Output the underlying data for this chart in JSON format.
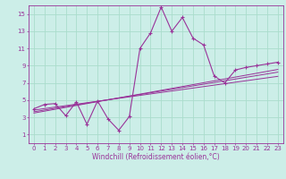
{
  "xlabel": "Windchill (Refroidissement éolien,°C)",
  "bg_color": "#cceee8",
  "grid_color": "#aaddcc",
  "line_color": "#993399",
  "x_data": [
    0,
    1,
    2,
    3,
    4,
    5,
    6,
    7,
    8,
    9,
    10,
    11,
    12,
    13,
    14,
    15,
    16,
    17,
    18,
    19,
    20,
    21,
    22,
    23
  ],
  "main_line": [
    4.0,
    4.5,
    4.6,
    3.2,
    4.8,
    2.2,
    4.9,
    2.8,
    1.5,
    3.1,
    11.0,
    12.8,
    15.8,
    13.0,
    14.6,
    12.2,
    11.4,
    7.8,
    7.0,
    8.5,
    8.8,
    9.0,
    9.2,
    9.4
  ],
  "reg_line1": [
    3.5,
    3.72,
    3.94,
    4.16,
    4.38,
    4.6,
    4.82,
    5.04,
    5.26,
    5.48,
    5.7,
    5.92,
    6.14,
    6.36,
    6.58,
    6.8,
    7.02,
    7.24,
    7.46,
    7.68,
    7.9,
    8.12,
    8.34,
    8.56
  ],
  "reg_line2": [
    3.65,
    3.85,
    4.05,
    4.25,
    4.45,
    4.65,
    4.85,
    5.05,
    5.25,
    5.45,
    5.65,
    5.85,
    6.05,
    6.25,
    6.45,
    6.65,
    6.85,
    7.05,
    7.25,
    7.45,
    7.65,
    7.85,
    8.05,
    8.25
  ],
  "reg_line3": [
    3.85,
    4.02,
    4.19,
    4.36,
    4.53,
    4.7,
    4.87,
    5.04,
    5.21,
    5.38,
    5.55,
    5.72,
    5.89,
    6.06,
    6.23,
    6.4,
    6.57,
    6.74,
    6.91,
    7.08,
    7.25,
    7.42,
    7.59,
    7.76
  ],
  "ylim": [
    0,
    16
  ],
  "yticks": [
    1,
    3,
    5,
    7,
    9,
    11,
    13,
    15
  ],
  "xticks": [
    0,
    1,
    2,
    3,
    4,
    5,
    6,
    7,
    8,
    9,
    10,
    11,
    12,
    13,
    14,
    15,
    16,
    17,
    18,
    19,
    20,
    21,
    22,
    23
  ],
  "xlabel_fontsize": 5.5,
  "tick_fontsize": 5.0
}
